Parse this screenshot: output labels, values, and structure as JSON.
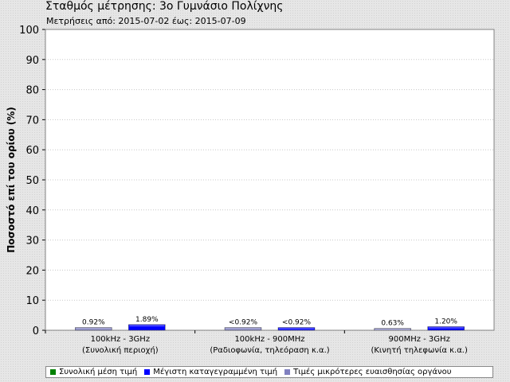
{
  "title": "Σταθμός μέτρησης: 3ο Γυμνάσιο Πολίχνης",
  "subtitle": "Μετρήσεις από: 2015-07-02 έως: 2015-07-09",
  "chart_data": {
    "type": "bar",
    "ylabel": "Ποσοστό επί του ορίου (%)",
    "ylim": [
      0,
      100
    ],
    "yticks": [
      0,
      10,
      20,
      30,
      40,
      50,
      60,
      70,
      80,
      90,
      100
    ],
    "grid": true,
    "categories": [
      {
        "line1": "100kHz - 3GHz",
        "line2": "(Συνολική περιοχή)"
      },
      {
        "line1": "100kHz - 900MHz",
        "line2": "(Ραδιοφωνία, τηλεόραση κ.α.)"
      },
      {
        "line1": "900MHz - 3GHz",
        "line2": "(Κινητή τηλεφωνία κ.α.)"
      }
    ],
    "series": [
      {
        "name": "Συνολική μέση τιμή",
        "color": "#8080c0",
        "values": [
          0.92,
          0.92,
          0.63
        ],
        "labels": [
          "0.92%",
          "<0.92%",
          "0.63%"
        ]
      },
      {
        "name": "Μέγιστη καταγεγραμμένη τιμή",
        "color": "#0000ff",
        "values": [
          1.89,
          0.92,
          1.2
        ],
        "labels": [
          "1.89%",
          "<0.92%",
          "1.20%"
        ]
      }
    ],
    "legend": {
      "placement": "bottom",
      "items": [
        {
          "label": "Συνολική μέση τιμή",
          "color": "#008000"
        },
        {
          "label": "Μέγιστη καταγεγραμμένη τιμή",
          "color": "#0000ff"
        },
        {
          "label": "Τιμές μικρότερες ευαισθησίας οργάνου",
          "color": "#8080c0"
        }
      ]
    }
  }
}
